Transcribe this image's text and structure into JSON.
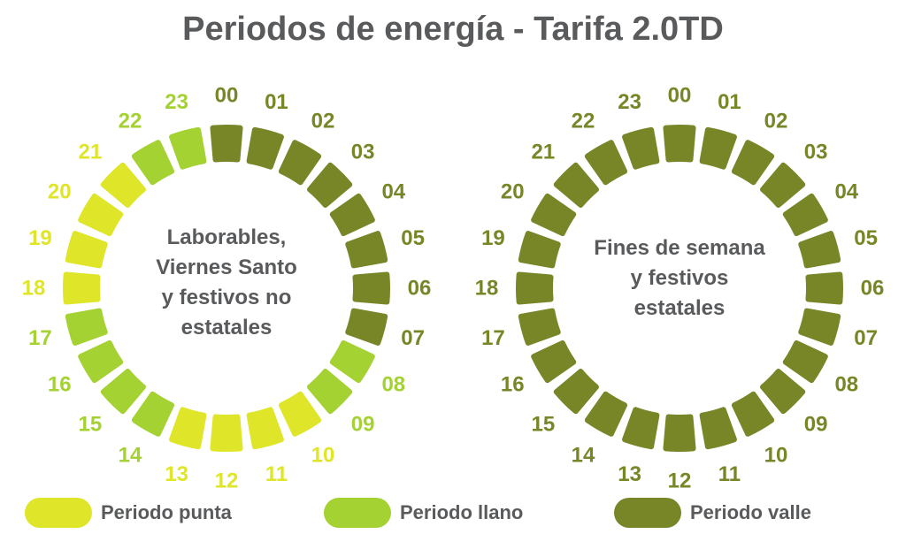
{
  "title": "Periodos de energía - Tarifa 2.0TD",
  "colors": {
    "punta": "#dfe629",
    "llano": "#a4d232",
    "valle": "#788627",
    "text": "#595a5c"
  },
  "clocks": [
    {
      "label": "Laborables,\nViernes Santo\ny festivos no\nestatales",
      "hours": [
        "00",
        "01",
        "02",
        "03",
        "04",
        "05",
        "06",
        "07",
        "08",
        "09",
        "10",
        "11",
        "12",
        "13",
        "14",
        "15",
        "16",
        "17",
        "18",
        "19",
        "20",
        "21",
        "22",
        "23"
      ],
      "periods": [
        "valle",
        "valle",
        "valle",
        "valle",
        "valle",
        "valle",
        "valle",
        "valle",
        "llano",
        "llano",
        "punta",
        "punta",
        "punta",
        "punta",
        "llano",
        "llano",
        "llano",
        "llano",
        "punta",
        "punta",
        "punta",
        "punta",
        "llano",
        "llano"
      ]
    },
    {
      "label": "Fines de semana\ny festivos\nestatales",
      "hours": [
        "00",
        "01",
        "02",
        "03",
        "04",
        "05",
        "06",
        "07",
        "08",
        "09",
        "10",
        "11",
        "12",
        "13",
        "14",
        "15",
        "16",
        "17",
        "18",
        "19",
        "20",
        "21",
        "22",
        "23"
      ],
      "periods": [
        "valle",
        "valle",
        "valle",
        "valle",
        "valle",
        "valle",
        "valle",
        "valle",
        "valle",
        "valle",
        "valle",
        "valle",
        "valle",
        "valle",
        "valle",
        "valle",
        "valle",
        "valle",
        "valle",
        "valle",
        "valle",
        "valle",
        "valle",
        "valle"
      ]
    }
  ],
  "legend": [
    {
      "key": "punta",
      "label": "Periodo punta"
    },
    {
      "key": "llano",
      "label": "Periodo llano"
    },
    {
      "key": "valle",
      "label": "Periodo valle"
    }
  ]
}
